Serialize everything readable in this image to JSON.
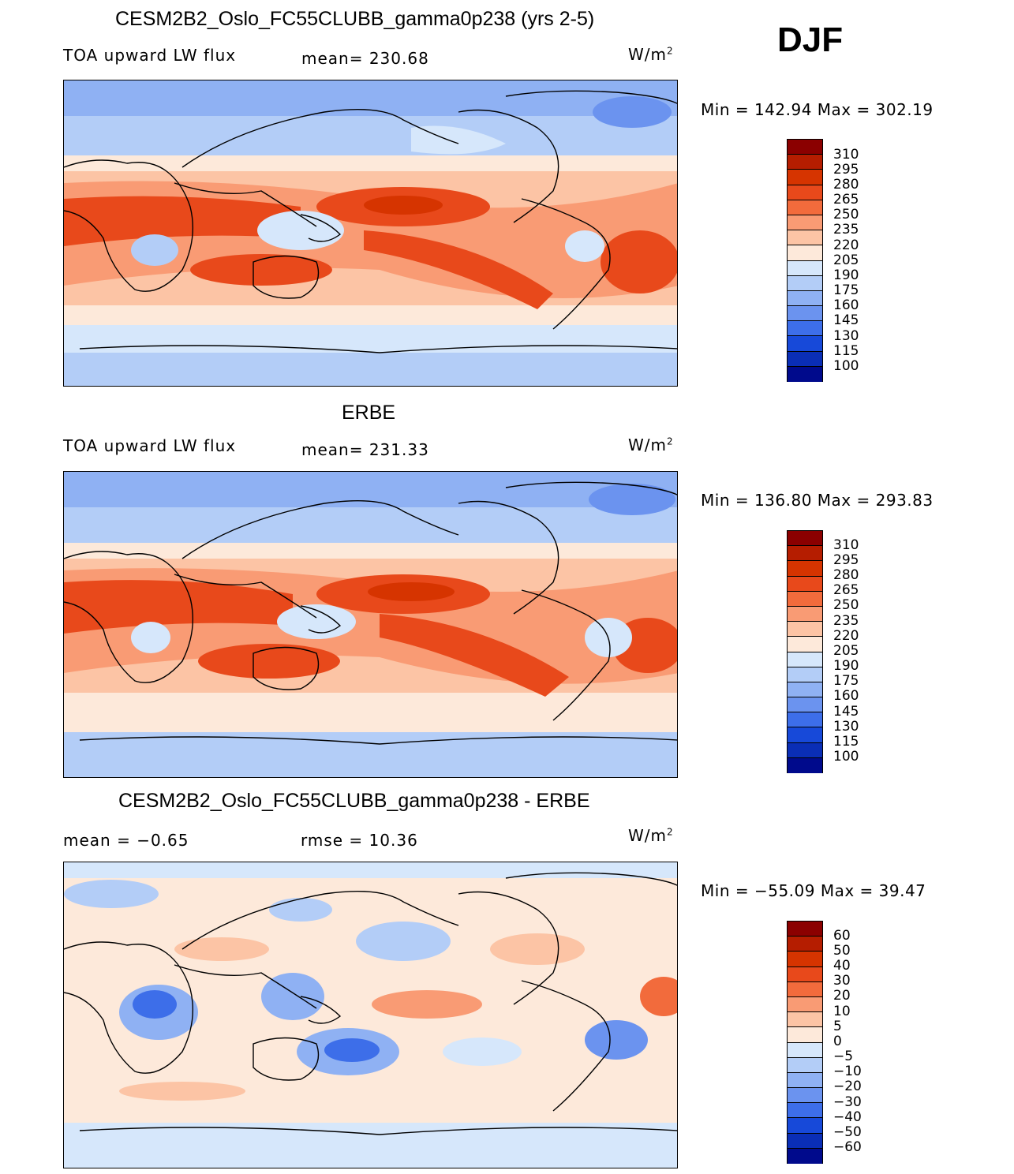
{
  "season": "DJF",
  "panels": [
    {
      "title": "CESM2B2_Oslo_FC55CLUBB_gamma0p238 (yrs 2-5)",
      "left_label": "TOA upward LW flux",
      "center_label": "mean= 230.68",
      "units_base": "W/m",
      "units_exp": "2",
      "minmax": "Min  =  142.94  Max  =  302.19",
      "colorbar_ticks": [
        "310",
        "295",
        "280",
        "265",
        "250",
        "235",
        "220",
        "205",
        "190",
        "175",
        "160",
        "145",
        "130",
        "115",
        "100"
      ]
    },
    {
      "title": "ERBE",
      "left_label": "TOA upward LW flux",
      "center_label": "mean= 231.33",
      "units_base": "W/m",
      "units_exp": "2",
      "minmax": "Min  =  136.80  Max  =  293.83",
      "colorbar_ticks": [
        "310",
        "295",
        "280",
        "265",
        "250",
        "235",
        "220",
        "205",
        "190",
        "175",
        "160",
        "145",
        "130",
        "115",
        "100"
      ]
    },
    {
      "title": "CESM2B2_Oslo_FC55CLUBB_gamma0p238 - ERBE",
      "left_label": "mean  =    −0.65",
      "center_label": "rmse  =    10.36",
      "units_base": "W/m",
      "units_exp": "2",
      "minmax": "Min  =  −55.09  Max  =    39.47",
      "colorbar_ticks": [
        "60",
        "50",
        "40",
        "30",
        "20",
        "10",
        "5",
        "0",
        "−5",
        "−10",
        "−20",
        "−30",
        "−40",
        "−50",
        "−60"
      ]
    }
  ],
  "colors": {
    "colorbar": [
      "#8b0000",
      "#b51d00",
      "#d63400",
      "#e8491b",
      "#f26b3c",
      "#f99b74",
      "#fcc4a5",
      "#fde9da",
      "#d6e7fb",
      "#b3cdf7",
      "#8fb1f3",
      "#6b93ef",
      "#3d6ee9",
      "#1749d9",
      "#0a2eb6",
      "#000a8c"
    ],
    "ocean_pos": "#fde9da",
    "land_line": "#000000"
  }
}
